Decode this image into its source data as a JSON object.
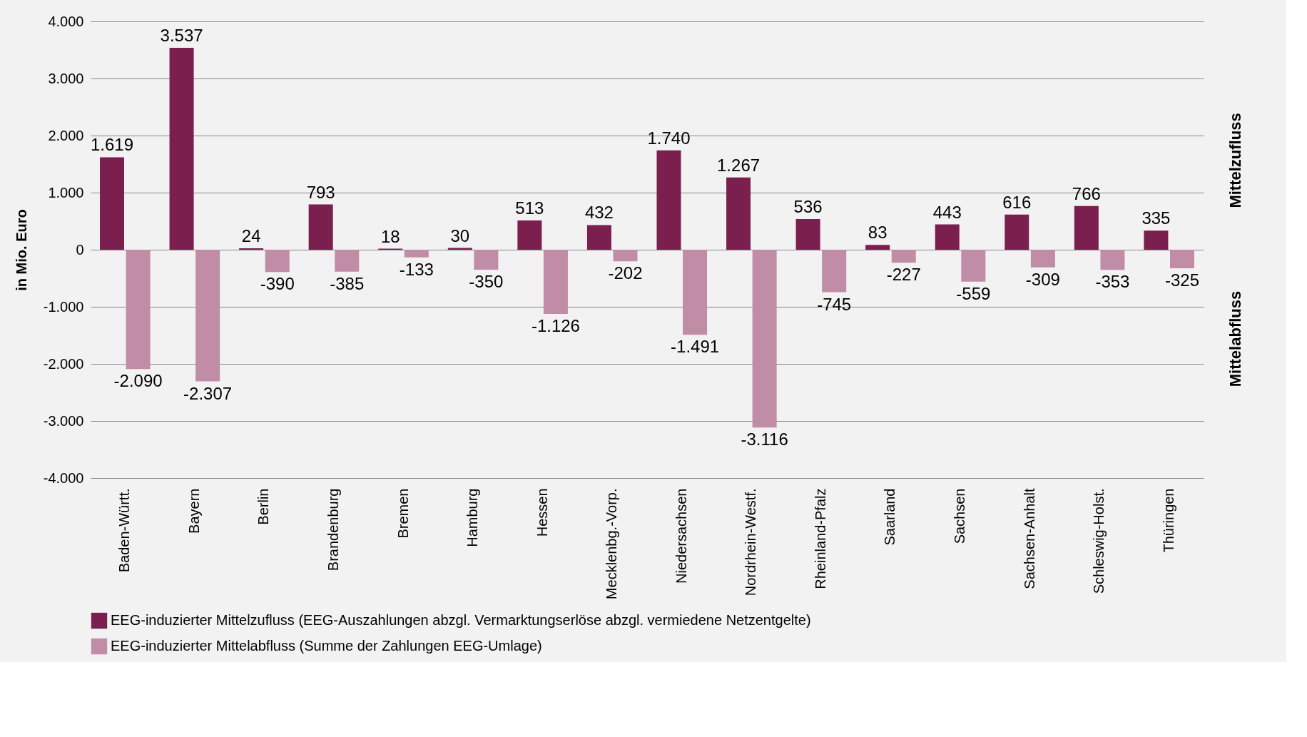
{
  "chart_data": {
    "type": "bar",
    "ylabel": "in Mio. Euro",
    "categories": [
      "Baden-Württ.",
      "Bayern",
      "Berlin",
      "Brandenburg",
      "Bremen",
      "Hamburg",
      "Hessen",
      "Mecklenbg.-Vorp.",
      "Niedersachsen",
      "Nordrhein-Westf.",
      "Rheinland-Pfalz",
      "Saarland",
      "Sachsen",
      "Sachsen-Anhalt",
      "Schleswig-Holst.",
      "Thüringen"
    ],
    "series": [
      {
        "name": "EEG-induzierter Mittelzufluss (EEG-Auszahlungen abzgl. Vermarktungserlöse abzgl. vermiedene Netzentgelte)",
        "color": "#7b1f4e",
        "values": [
          1619,
          3537,
          24,
          793,
          18,
          30,
          513,
          432,
          1740,
          1267,
          536,
          83,
          443,
          616,
          766,
          335
        ],
        "value_labels": [
          "1.619",
          "3.537",
          "24",
          "793",
          "18",
          "30",
          "513",
          "432",
          "1.740",
          "1.267",
          "536",
          "83",
          "443",
          "616",
          "766",
          "335"
        ]
      },
      {
        "name": "EEG-induzierter Mittelabfluss (Summe der Zahlungen EEG-Umlage)",
        "color": "#c08ca6",
        "values": [
          -2090,
          -2307,
          -390,
          -385,
          -133,
          -350,
          -1126,
          -202,
          -1491,
          -3116,
          -745,
          -227,
          -559,
          -309,
          -353,
          -325
        ],
        "value_labels": [
          "-2.090",
          "-2.307",
          "-390",
          "-385",
          "-133",
          "-350",
          "-1.126",
          "-202",
          "-1.491",
          "-3.116",
          "-745",
          "-227",
          "-559",
          "-309",
          "-353",
          "-325"
        ]
      }
    ],
    "ylim": [
      -4000,
      4000
    ],
    "yticks": [
      {
        "value": -4000,
        "label": "-4.000"
      },
      {
        "value": -3000,
        "label": "-3.000"
      },
      {
        "value": -2000,
        "label": "-2.000"
      },
      {
        "value": -1000,
        "label": "-1.000"
      },
      0,
      {
        "value": 1000,
        "label": "1.000"
      },
      {
        "value": 2000,
        "label": "2.000"
      },
      {
        "value": 3000,
        "label": "3.000"
      },
      {
        "value": 4000,
        "label": "4.000"
      }
    ],
    "grid": "y",
    "legend": "bottom",
    "annotations": [
      "Mittelzufluss",
      "Mittelabfluss"
    ]
  }
}
